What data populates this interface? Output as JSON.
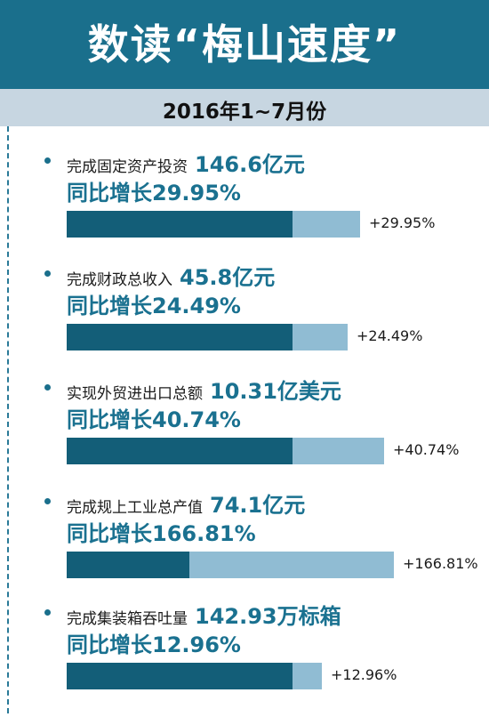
{
  "header": {
    "title": "数读“梅山速度”",
    "subtitle": "2016年1~7月份"
  },
  "chart_data": {
    "type": "bar",
    "title": "数读“梅山速度”",
    "subtitle": "2016年1~7月份",
    "items": [
      {
        "label": "完成固定资产投资",
        "value": "146.6亿元",
        "growth_text": "同比增长29.95%",
        "bar_label": "+29.95%",
        "growth_pct": 29.95
      },
      {
        "label": "完成财政总收入",
        "value": "45.8亿元",
        "growth_text": "同比增长24.49%",
        "bar_label": "+24.49%",
        "growth_pct": 24.49
      },
      {
        "label": "实现外贸进出口总额",
        "value": "10.31亿美元",
        "growth_text": "同比增长40.74%",
        "bar_label": "+40.74%",
        "growth_pct": 40.74
      },
      {
        "label": "完成规上工业总产值",
        "value": "74.1亿元",
        "growth_text": "同比增长166.81%",
        "bar_label": "+166.81%",
        "growth_pct": 166.81
      },
      {
        "label": "完成集装箱吞吐量",
        "value": "142.93万标箱",
        "growth_text": "同比增长12.96%",
        "bar_label": "+12.96%",
        "growth_pct": 12.96
      }
    ]
  },
  "colors": {
    "header_bg": "#1a6f8c",
    "subtitle_bg": "#c7d6e1",
    "bar_base": "#135e78",
    "bar_growth": "#90bcd3",
    "accent_text": "#1a7190"
  }
}
